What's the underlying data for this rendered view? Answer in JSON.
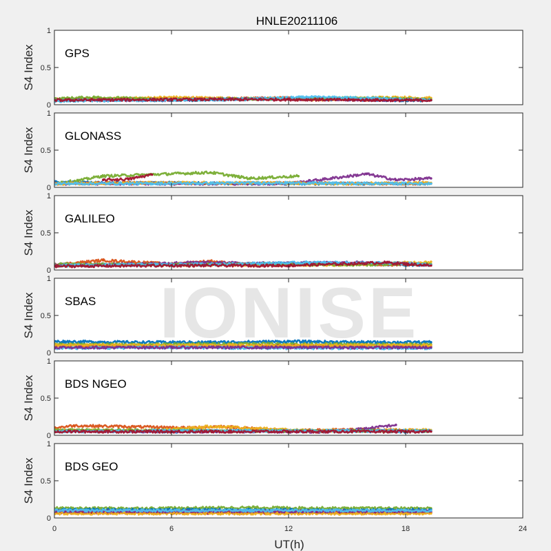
{
  "title": "HNLE20211106",
  "xlabel": "UT(h)",
  "ylabel": "S4 Index",
  "watermark": "IONISE",
  "colors": {
    "background": "#f0f0f0",
    "axes": "#ffffff",
    "axis_line": "#262626",
    "series": [
      "#0072BD",
      "#D95319",
      "#EDB120",
      "#7E2F8E",
      "#77AC30",
      "#4DBEEE",
      "#A2142F"
    ]
  },
  "chart_data": {
    "type": "scatter",
    "title": "HNLE20211106",
    "xlabel": "UT(h)",
    "xlim": [
      0,
      24
    ],
    "xticks": [
      0,
      6,
      12,
      18,
      24
    ],
    "x_tick_labels": [
      "0",
      "6",
      "12",
      "18",
      "24"
    ],
    "ylim": [
      0,
      1
    ],
    "yticks": [
      0,
      0.5,
      1
    ],
    "y_tick_labels": [
      "0",
      "0.5",
      "1"
    ],
    "grid": false,
    "legend": "none",
    "panels": [
      {
        "name": "GPS",
        "ylabel": "S4 Index",
        "series": [
          {
            "color": "#0072BD",
            "x": [
              0,
              3,
              6,
              9,
              12,
              15,
              18,
              19.3
            ],
            "y": [
              0.06,
              0.07,
              0.06,
              0.07,
              0.08,
              0.07,
              0.06,
              0.06
            ]
          },
          {
            "color": "#D95319",
            "x": [
              0,
              4,
              8,
              12,
              16,
              19.3
            ],
            "y": [
              0.07,
              0.08,
              0.08,
              0.09,
              0.07,
              0.07
            ]
          },
          {
            "color": "#EDB120",
            "x": [
              0,
              3,
              6,
              10,
              14,
              17,
              19.3
            ],
            "y": [
              0.06,
              0.08,
              0.1,
              0.08,
              0.07,
              0.1,
              0.09
            ]
          },
          {
            "color": "#7E2F8E",
            "x": [
              0,
              5,
              10,
              15,
              19.3
            ],
            "y": [
              0.07,
              0.06,
              0.08,
              0.07,
              0.06
            ]
          },
          {
            "color": "#77AC30",
            "x": [
              0,
              2,
              6,
              11,
              16,
              19.3
            ],
            "y": [
              0.08,
              0.1,
              0.07,
              0.08,
              0.09,
              0.07
            ]
          },
          {
            "color": "#4DBEEE",
            "x": [
              0,
              4,
              9,
              13,
              16,
              19.3
            ],
            "y": [
              0.05,
              0.06,
              0.07,
              0.1,
              0.09,
              0.06
            ]
          },
          {
            "color": "#A2142F",
            "x": [
              0,
              6,
              12,
              18,
              19.3
            ],
            "y": [
              0.06,
              0.07,
              0.07,
              0.06,
              0.06
            ]
          }
        ]
      },
      {
        "name": "GLONASS",
        "ylabel": "S4 Index",
        "series": [
          {
            "color": "#0072BD",
            "x": [
              0,
              3,
              6,
              10,
              14,
              18,
              19.3
            ],
            "y": [
              0.07,
              0.06,
              0.06,
              0.05,
              0.05,
              0.05,
              0.05
            ]
          },
          {
            "color": "#D95319",
            "x": [
              0,
              4,
              8,
              12,
              16,
              19.3
            ],
            "y": [
              0.05,
              0.06,
              0.05,
              0.06,
              0.05,
              0.05
            ]
          },
          {
            "color": "#77AC30",
            "x": [
              0,
              1.2,
              2.4,
              8,
              10,
              12.5
            ],
            "y": [
              0.06,
              0.09,
              0.15,
              0.2,
              0.12,
              0.15
            ]
          },
          {
            "color": "#7E2F8E",
            "x": [
              0,
              6,
              12,
              16,
              17.5,
              19.3
            ],
            "y": [
              0.05,
              0.05,
              0.05,
              0.18,
              0.1,
              0.12
            ]
          },
          {
            "color": "#A2142F",
            "x": [
              2.5,
              3.8,
              5
            ],
            "y": [
              0.1,
              0.11,
              0.17
            ]
          },
          {
            "color": "#EDB120",
            "x": [
              0,
              5,
              10,
              15,
              19.3
            ],
            "y": [
              0.05,
              0.06,
              0.06,
              0.05,
              0.06
            ]
          },
          {
            "color": "#4DBEEE",
            "x": [
              0,
              5,
              11,
              17,
              19.3
            ],
            "y": [
              0.05,
              0.05,
              0.06,
              0.05,
              0.05
            ]
          }
        ]
      },
      {
        "name": "GALILEO",
        "ylabel": "S4 Index",
        "series": [
          {
            "color": "#0072BD",
            "x": [
              0,
              3,
              6,
              9,
              12,
              15,
              18,
              19.3
            ],
            "y": [
              0.06,
              0.07,
              0.07,
              0.08,
              0.09,
              0.08,
              0.07,
              0.07
            ]
          },
          {
            "color": "#D95319",
            "x": [
              0,
              2.5,
              6,
              8,
              10,
              14,
              19.3
            ],
            "y": [
              0.07,
              0.13,
              0.08,
              0.12,
              0.06,
              0.08,
              0.07
            ]
          },
          {
            "color": "#EDB120",
            "x": [
              0,
              5,
              10,
              15,
              19.3
            ],
            "y": [
              0.06,
              0.07,
              0.07,
              0.07,
              0.11
            ]
          },
          {
            "color": "#7E2F8E",
            "x": [
              0,
              4,
              7,
              11,
              16,
              19.3
            ],
            "y": [
              0.07,
              0.08,
              0.1,
              0.09,
              0.1,
              0.07
            ]
          },
          {
            "color": "#77AC30",
            "x": [
              0,
              5,
              10,
              15,
              19.3
            ],
            "y": [
              0.08,
              0.07,
              0.08,
              0.07,
              0.08
            ]
          },
          {
            "color": "#4DBEEE",
            "x": [
              0,
              4,
              9,
              13,
              18,
              19.3
            ],
            "y": [
              0.06,
              0.07,
              0.08,
              0.1,
              0.09,
              0.07
            ]
          },
          {
            "color": "#A2142F",
            "x": [
              0,
              6,
              12,
              17,
              19.3
            ],
            "y": [
              0.05,
              0.06,
              0.06,
              0.1,
              0.06
            ]
          }
        ]
      },
      {
        "name": "SBAS",
        "ylabel": "S4 Index",
        "series": [
          {
            "color": "#0072BD",
            "x": [
              0,
              4,
              8,
              12,
              16,
              19.3
            ],
            "y": [
              0.15,
              0.14,
              0.14,
              0.15,
              0.14,
              0.14
            ]
          },
          {
            "color": "#77AC30",
            "x": [
              0,
              5,
              10,
              15,
              19.3
            ],
            "y": [
              0.11,
              0.11,
              0.12,
              0.11,
              0.11
            ]
          },
          {
            "color": "#D95319",
            "x": [
              0,
              6,
              12,
              18,
              19.3
            ],
            "y": [
              0.08,
              0.08,
              0.09,
              0.08,
              0.08
            ]
          },
          {
            "color": "#EDB120",
            "x": [
              0,
              6,
              12,
              18,
              19.3
            ],
            "y": [
              0.1,
              0.1,
              0.1,
              0.1,
              0.1
            ]
          },
          {
            "color": "#4DBEEE",
            "x": [
              0,
              6,
              12,
              18,
              19.3
            ],
            "y": [
              0.06,
              0.07,
              0.06,
              0.06,
              0.06
            ]
          },
          {
            "color": "#7E2F8E",
            "x": [
              0,
              6,
              12,
              18,
              19.3
            ],
            "y": [
              0.07,
              0.07,
              0.07,
              0.07,
              0.07
            ]
          }
        ]
      },
      {
        "name": "BDS NGEO",
        "ylabel": "S4 Index",
        "series": [
          {
            "color": "#0072BD",
            "x": [
              0,
              3,
              6,
              10,
              14,
              18,
              19.3
            ],
            "y": [
              0.06,
              0.06,
              0.05,
              0.06,
              0.06,
              0.05,
              0.06
            ]
          },
          {
            "color": "#D95319",
            "x": [
              0,
              1,
              7,
              8.5,
              12,
              16,
              19.3
            ],
            "y": [
              0.1,
              0.13,
              0.1,
              0.12,
              0.06,
              0.08,
              0.06
            ]
          },
          {
            "color": "#EDB120",
            "x": [
              0,
              5,
              8,
              9,
              13,
              19.3
            ],
            "y": [
              0.07,
              0.06,
              0.12,
              0.11,
              0.06,
              0.07
            ]
          },
          {
            "color": "#7E2F8E",
            "x": [
              0,
              5,
              10,
              14,
              16,
              17.5
            ],
            "y": [
              0.06,
              0.05,
              0.05,
              0.05,
              0.09,
              0.14
            ]
          },
          {
            "color": "#77AC30",
            "x": [
              0,
              4,
              9,
              14,
              19.3
            ],
            "y": [
              0.07,
              0.07,
              0.06,
              0.06,
              0.06
            ]
          },
          {
            "color": "#4DBEEE",
            "x": [
              0,
              5,
              10,
              15,
              19.3
            ],
            "y": [
              0.05,
              0.06,
              0.06,
              0.06,
              0.06
            ]
          },
          {
            "color": "#A2142F",
            "x": [
              0,
              6,
              12,
              18,
              19.3
            ],
            "y": [
              0.05,
              0.05,
              0.05,
              0.05,
              0.05
            ]
          }
        ]
      },
      {
        "name": "BDS GEO",
        "ylabel": "S4 Index",
        "series": [
          {
            "color": "#77AC30",
            "x": [
              0,
              5,
              10,
              15,
              19.3
            ],
            "y": [
              0.13,
              0.13,
              0.14,
              0.13,
              0.13
            ]
          },
          {
            "color": "#0072BD",
            "x": [
              0,
              5,
              10,
              15,
              19.3
            ],
            "y": [
              0.11,
              0.11,
              0.11,
              0.1,
              0.11
            ]
          },
          {
            "color": "#D95319",
            "x": [
              0,
              6,
              12,
              18,
              19.3
            ],
            "y": [
              0.08,
              0.08,
              0.08,
              0.08,
              0.08
            ]
          },
          {
            "color": "#A2142F",
            "x": [
              0,
              6,
              12,
              18,
              19.3
            ],
            "y": [
              0.07,
              0.07,
              0.07,
              0.07,
              0.07
            ]
          },
          {
            "color": "#EDB120",
            "x": [
              0,
              6,
              12,
              18,
              19.3
            ],
            "y": [
              0.06,
              0.06,
              0.06,
              0.06,
              0.06
            ]
          },
          {
            "color": "#7E2F8E",
            "x": [
              0,
              6,
              12,
              18,
              19.3
            ],
            "y": [
              0.09,
              0.09,
              0.09,
              0.09,
              0.09
            ]
          },
          {
            "color": "#4DBEEE",
            "x": [
              0,
              6,
              12,
              18,
              19.3
            ],
            "y": [
              0.1,
              0.1,
              0.1,
              0.1,
              0.1
            ]
          }
        ]
      }
    ]
  }
}
